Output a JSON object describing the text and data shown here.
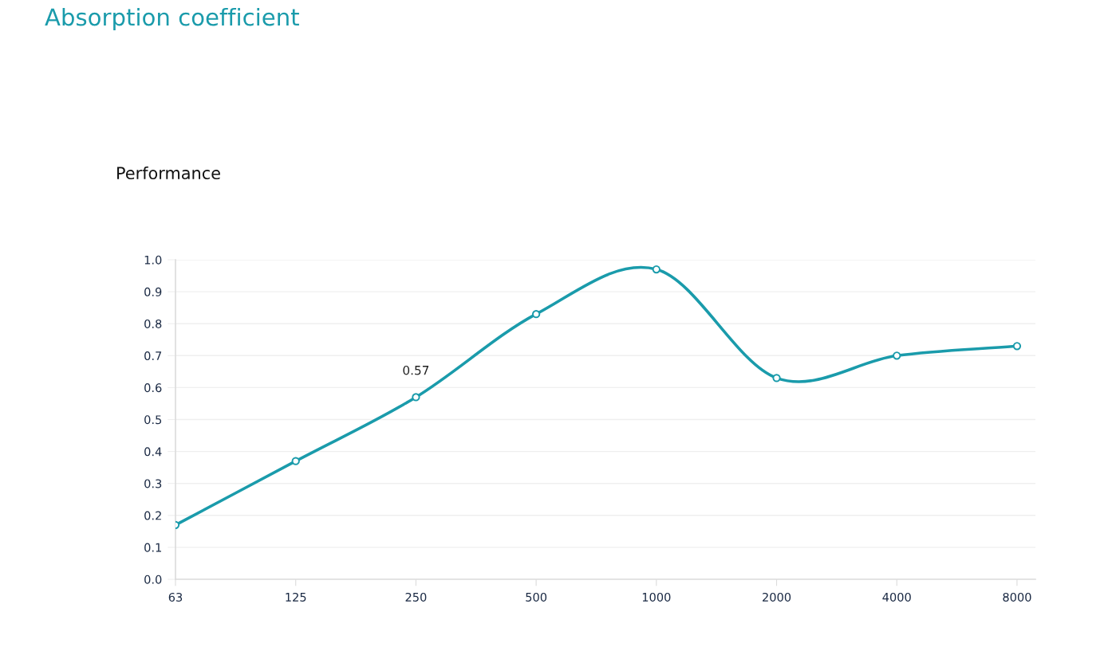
{
  "chart_data": {
    "type": "line",
    "title": "Absorption coefficient",
    "subtitle": "Performance",
    "categories": [
      "63",
      "125",
      "250",
      "500",
      "1000",
      "2000",
      "4000",
      "8000"
    ],
    "series": [
      {
        "color": "#1a9bab",
        "values": [
          0.17,
          0.37,
          0.57,
          0.83,
          0.97,
          0.63,
          0.7,
          0.73
        ],
        "value_labels": [
          null,
          null,
          "0.57",
          null,
          null,
          null,
          null,
          null
        ]
      }
    ],
    "ylim": [
      0,
      1
    ],
    "yticks": [
      {
        "value": 0,
        "label": "0.0"
      },
      0.1,
      0.2,
      0.3,
      0.4,
      0.5,
      0.6,
      0.7,
      0.8,
      0.9,
      {
        "value": 1,
        "label": "1.0"
      }
    ],
    "grid": "y",
    "marker": "circle",
    "line_style": "solid"
  }
}
